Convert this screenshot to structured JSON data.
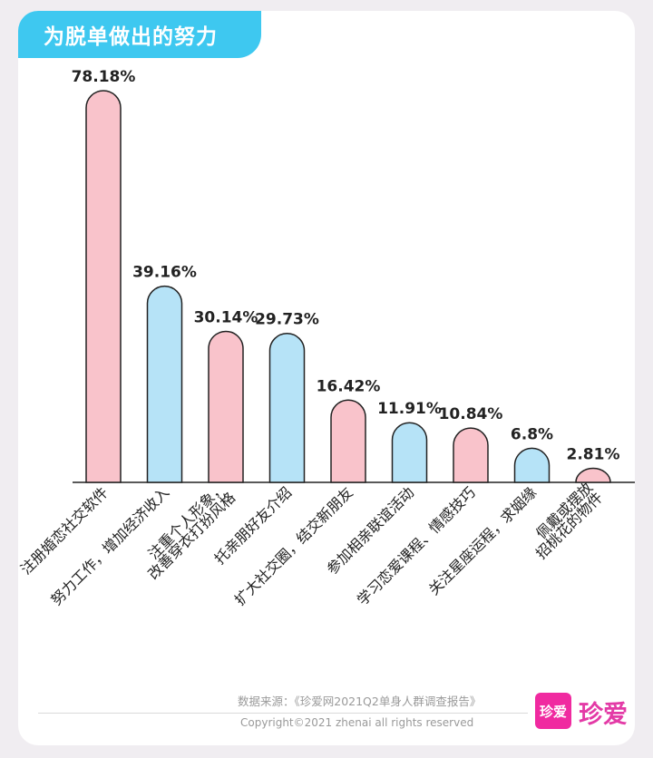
{
  "header": {
    "title": "为脱单做出的努力"
  },
  "chart_data": {
    "type": "bar",
    "title": "为脱单做出的努力",
    "categories": [
      "注册婚恋社交软件",
      "努力工作，增加经济收入",
      "注重个人形象，改善穿衣打扮风格",
      "托亲朋好友介绍",
      "扩大社交圈，结交新朋友",
      "参加相亲联谊活动",
      "学习恋爱课程、情感技巧",
      "关注星座运程，求姻缘",
      "佩戴或摆放招桃花的物件"
    ],
    "category_lines": [
      [
        "注册婚恋社交软件"
      ],
      [
        "努力工作，增加经济收入"
      ],
      [
        "注重个人形象，",
        "改善穿衣打扮风格"
      ],
      [
        "托亲朋好友介绍"
      ],
      [
        "扩大社交圈，结交新朋友"
      ],
      [
        "参加相亲联谊活动"
      ],
      [
        "学习恋爱课程、情感技巧"
      ],
      [
        "关注星座运程，求姻缘"
      ],
      [
        "佩戴或摆放",
        "招桃花的物件"
      ]
    ],
    "values": [
      78.18,
      39.16,
      30.14,
      29.73,
      16.42,
      11.91,
      10.84,
      6.8,
      2.81
    ],
    "value_labels": [
      "78.18%",
      "39.16%",
      "30.14%",
      "29.73%",
      "16.42%",
      "11.91%",
      "10.84%",
      "6.8%",
      "2.81%"
    ],
    "bar_colors": [
      "#f9c3cb",
      "#b6e3f7",
      "#f9c3cb",
      "#b6e3f7",
      "#f9c3cb",
      "#b6e3f7",
      "#f9c3cb",
      "#b6e3f7",
      "#f9c3cb"
    ],
    "ylim": [
      0,
      78.18
    ],
    "grid": false,
    "legend": "none"
  },
  "colors": {
    "accent": "#3ec8f0",
    "pink_bar": "#f9c3cb",
    "blue_bar": "#b6e3f7",
    "bar_outline": "#222222",
    "brand": "#f02aa0"
  },
  "footer": {
    "source": "数据来源：《珍爱网2021Q2单身人群调查报告》",
    "copyright": "Copyright©2021  zhenai  all rights reserved",
    "logo_box": "珍爱",
    "logo_text": "珍爱"
  }
}
